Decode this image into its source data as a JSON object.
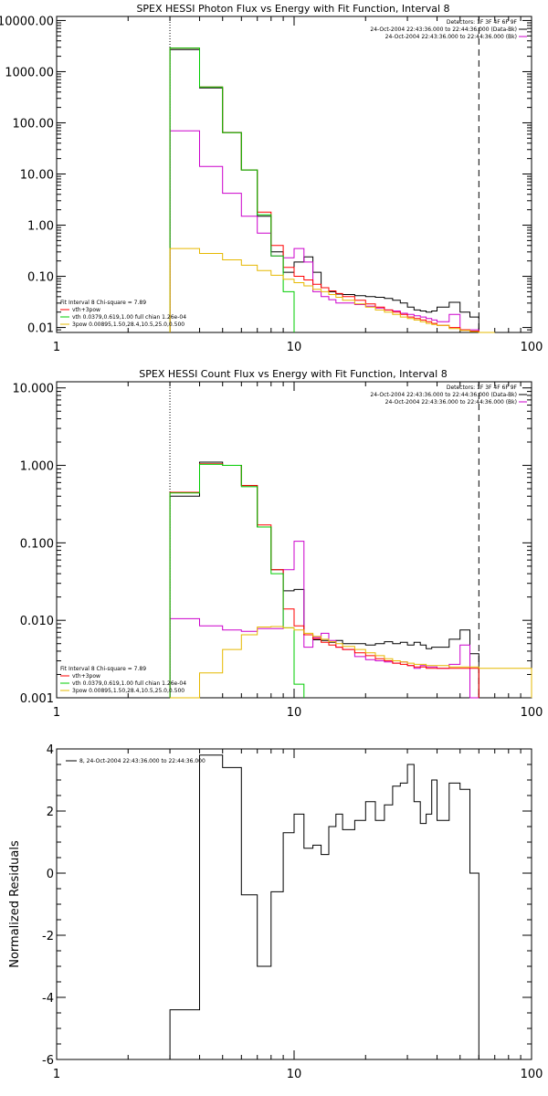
{
  "chart_data": [
    {
      "type": "line",
      "title": "SPEX HESSI Photon Flux vs Energy with Fit Function, Interval 8",
      "xlabel": "",
      "ylabel": "",
      "xscale": "log",
      "yscale": "log",
      "xlim": [
        1,
        100
      ],
      "ylim": [
        0.008,
        12000
      ],
      "x_ticks": [
        {
          "value": 1,
          "label": "1"
        },
        {
          "value": 10,
          "label": "10"
        },
        {
          "value": 100,
          "label": "100"
        }
      ],
      "y_ticks": [
        {
          "value": 0.01,
          "label": "0.01"
        },
        {
          "value": 0.1,
          "label": "0.10"
        },
        {
          "value": 1,
          "label": "1.00"
        },
        {
          "value": 10,
          "label": "10.00"
        },
        {
          "value": 100,
          "label": "100.00"
        },
        {
          "value": 1000,
          "label": "1000.00"
        },
        {
          "value": 10000,
          "label": "10000.00"
        }
      ],
      "vlines": [
        {
          "x": 3,
          "style": "dotted"
        },
        {
          "x": 60,
          "style": "dashed"
        }
      ],
      "legend_top_right": [
        {
          "text": "Detectors: 1F 3F 4F 6F 9F",
          "color": ""
        },
        {
          "text": "24-Oct-2004 22:43:36.000 to 22:44:36.000 (Data-Bk)",
          "color": "#000000"
        },
        {
          "text": "24-Oct-2004 22:43:36.000 to 22:44:36.000 (Bk)",
          "color": "#cc00cc"
        }
      ],
      "legend_bottom_left": [
        {
          "text": "Fit Interval 8   Chi-square = 7.89",
          "color": ""
        },
        {
          "text": "vth+3pow",
          "color": "#ff0000"
        },
        {
          "text": "vth 0.0379,0.619,1.00  full chian 1.26e-04",
          "color": "#00cc00"
        },
        {
          "text": "3pow 0.00895,1.50,28.4,10.5,25.0,0.500",
          "color": "#e6b800"
        }
      ],
      "series": [
        {
          "role": "data",
          "color": "#000000",
          "edges": [
            3,
            4,
            5,
            6,
            7,
            8,
            9,
            10,
            11,
            12,
            13,
            14,
            15,
            16,
            18,
            20,
            22,
            24,
            26,
            28,
            30,
            32,
            34,
            36,
            38,
            40,
            45,
            50,
            55,
            60
          ],
          "values": [
            2700,
            480,
            65,
            12,
            1.5,
            0.3,
            0.12,
            0.19,
            0.24,
            0.12,
            0.06,
            0.05,
            0.045,
            0.044,
            0.042,
            0.04,
            0.039,
            0.037,
            0.034,
            0.03,
            0.025,
            0.022,
            0.021,
            0.02,
            0.021,
            0.025,
            0.031,
            0.02,
            0.016
          ]
        },
        {
          "role": "background",
          "color": "#cc00cc",
          "edges": [
            3,
            4,
            5,
            6,
            7,
            8,
            9,
            10,
            11,
            12,
            13,
            14,
            15,
            16,
            18,
            20,
            22,
            24,
            26,
            28,
            30,
            32,
            34,
            36,
            38,
            40,
            45,
            50,
            55,
            60
          ],
          "values": [
            70,
            14,
            4.2,
            1.5,
            0.7,
            0.25,
            0.23,
            0.35,
            0.19,
            0.05,
            0.04,
            0.035,
            0.03,
            0.03,
            0.028,
            0.026,
            0.024,
            0.022,
            0.021,
            0.019,
            0.018,
            0.017,
            0.016,
            0.015,
            0.014,
            0.013,
            0.018,
            0.009,
            0.009
          ]
        },
        {
          "role": "fit",
          "color": "#ff0000",
          "edges": [
            3,
            4,
            5,
            6,
            7,
            8,
            9,
            10,
            11,
            12,
            13,
            14,
            15,
            16,
            18,
            20,
            22,
            24,
            26,
            28,
            30,
            32,
            34,
            36,
            38,
            40,
            45,
            50,
            55,
            60
          ],
          "values": [
            2900,
            500,
            64,
            12,
            1.8,
            0.4,
            0.15,
            0.1,
            0.085,
            0.07,
            0.06,
            0.052,
            0.046,
            0.04,
            0.034,
            0.029,
            0.025,
            0.022,
            0.02,
            0.018,
            0.016,
            0.015,
            0.014,
            0.013,
            0.012,
            0.011,
            0.01,
            0.009,
            0.0085
          ]
        },
        {
          "role": "thermal",
          "color": "#00cc00",
          "edges": [
            3,
            4,
            5,
            6,
            7,
            8,
            9,
            10
          ],
          "values": [
            2900,
            500,
            64,
            12,
            1.6,
            0.25,
            0.05
          ]
        },
        {
          "role": "power-law",
          "color": "#e6b800",
          "edges": [
            3,
            4,
            5,
            6,
            7,
            8,
            9,
            10,
            11,
            12,
            13,
            14,
            15,
            16,
            18,
            20,
            22,
            24,
            26,
            28,
            30,
            32,
            34,
            36,
            38,
            40,
            45,
            50,
            55,
            60,
            70
          ],
          "values": [
            0.35,
            0.28,
            0.21,
            0.165,
            0.13,
            0.105,
            0.088,
            0.075,
            0.065,
            0.056,
            0.05,
            0.044,
            0.039,
            0.034,
            0.029,
            0.025,
            0.022,
            0.02,
            0.018,
            0.016,
            0.015,
            0.014,
            0.013,
            0.012,
            0.0115,
            0.011,
            0.0095,
            0.0088,
            0.0083,
            0.008
          ]
        }
      ]
    },
    {
      "type": "line",
      "title": "SPEX HESSI Count Flux vs Energy with Fit Function, Interval 8",
      "xlabel": "",
      "ylabel": "",
      "xscale": "log",
      "yscale": "log",
      "xlim": [
        1,
        100
      ],
      "ylim": [
        0.001,
        12
      ],
      "x_ticks": [
        {
          "value": 1,
          "label": "1"
        },
        {
          "value": 10,
          "label": "10"
        },
        {
          "value": 100,
          "label": "100"
        }
      ],
      "y_ticks": [
        {
          "value": 0.001,
          "label": "0.001"
        },
        {
          "value": 0.01,
          "label": "0.010"
        },
        {
          "value": 0.1,
          "label": "0.100"
        },
        {
          "value": 1,
          "label": "1.000"
        },
        {
          "value": 10,
          "label": "10.000"
        }
      ],
      "vlines": [
        {
          "x": 3,
          "style": "dotted"
        },
        {
          "x": 60,
          "style": "dashed"
        }
      ],
      "legend_top_right": [
        {
          "text": "Detectors: 1F 3F 4F 6F 9F",
          "color": ""
        },
        {
          "text": "24-Oct-2004 22:43:36.000 to 22:44:36.000 (Data-Bk)",
          "color": "#000000"
        },
        {
          "text": "24-Oct-2004 22:43:36.000 to 22:44:36.000 (Bk)",
          "color": "#cc00cc"
        }
      ],
      "legend_bottom_left": [
        {
          "text": "Fit Interval 8   Chi-square = 7.89",
          "color": ""
        },
        {
          "text": "vth+3pow",
          "color": "#ff0000"
        },
        {
          "text": "vth 0.0379,0.619,1.00  full chian 1.26e-04",
          "color": "#00cc00"
        },
        {
          "text": "3pow 0.00895,1.50,28.4,10.5,25.0,0.500",
          "color": "#e6b800"
        }
      ],
      "series": [
        {
          "role": "data",
          "color": "#000000",
          "edges": [
            3,
            4,
            5,
            6,
            7,
            8,
            9,
            10,
            11,
            12,
            13,
            14,
            15,
            16,
            18,
            20,
            22,
            24,
            26,
            28,
            30,
            32,
            34,
            36,
            38,
            40,
            45,
            50,
            55,
            60
          ],
          "values": [
            0.4,
            1.1,
            1.0,
            0.55,
            0.16,
            0.045,
            0.024,
            0.025,
            0.0065,
            0.0056,
            0.0055,
            0.0052,
            0.0055,
            0.005,
            0.005,
            0.0048,
            0.005,
            0.0053,
            0.005,
            0.0052,
            0.0048,
            0.0052,
            0.0048,
            0.0043,
            0.0045,
            0.0045,
            0.0057,
            0.0075,
            0.0037
          ]
        },
        {
          "role": "background",
          "color": "#cc00cc",
          "edges": [
            3,
            4,
            5,
            6,
            7,
            8,
            9,
            10,
            11,
            12,
            13,
            14,
            15,
            16,
            18,
            20,
            22,
            24,
            26,
            28,
            30,
            32,
            34,
            36,
            38,
            40,
            45,
            50,
            55,
            60
          ],
          "values": [
            0.0105,
            0.0085,
            0.0075,
            0.0072,
            0.0078,
            0.0078,
            0.045,
            0.105,
            0.0045,
            0.006,
            0.0068,
            0.0055,
            0.0045,
            0.0042,
            0.0034,
            0.0031,
            0.003,
            0.0029,
            0.0028,
            0.0029,
            0.0026,
            0.0024,
            0.0026,
            0.0025,
            0.0025,
            0.0024,
            0.0027,
            0.0048,
            0.0009
          ]
        },
        {
          "role": "fit",
          "color": "#ff0000",
          "edges": [
            3,
            4,
            5,
            6,
            7,
            8,
            9,
            10,
            11,
            12,
            13,
            14,
            15,
            16,
            18,
            20,
            22,
            24,
            26,
            28,
            30,
            32,
            34,
            36,
            38,
            40,
            45,
            50,
            55,
            60
          ],
          "values": [
            0.45,
            1.05,
            1.0,
            0.55,
            0.17,
            0.045,
            0.014,
            0.0085,
            0.0065,
            0.0058,
            0.0052,
            0.0048,
            0.0045,
            0.0042,
            0.0038,
            0.0035,
            0.0032,
            0.003,
            0.0028,
            0.0027,
            0.0026,
            0.0025,
            0.0025,
            0.0024,
            0.0024,
            0.0024,
            0.0024,
            0.0024,
            0.0024
          ]
        },
        {
          "role": "thermal",
          "color": "#00cc00",
          "edges": [
            3,
            4,
            5,
            6,
            7,
            8,
            9,
            10,
            11
          ],
          "values": [
            0.44,
            1.03,
            1.0,
            0.53,
            0.16,
            0.04,
            0.008,
            0.0015
          ]
        },
        {
          "role": "power-law",
          "color": "#e6b800",
          "edges": [
            3,
            4,
            5,
            6,
            7,
            8,
            9,
            10,
            11,
            12,
            13,
            14,
            15,
            16,
            18,
            20,
            22,
            24,
            26,
            28,
            30,
            32,
            34,
            36,
            38,
            40,
            45,
            50,
            55,
            60,
            70,
            100
          ],
          "values": [
            0.0008,
            0.0021,
            0.0042,
            0.0065,
            0.0082,
            0.0083,
            0.008,
            0.0075,
            0.0068,
            0.0062,
            0.0057,
            0.0053,
            0.005,
            0.0046,
            0.0042,
            0.0038,
            0.0035,
            0.0032,
            0.003,
            0.0029,
            0.0028,
            0.0027,
            0.0027,
            0.0026,
            0.0026,
            0.0026,
            0.0025,
            0.0025,
            0.0025,
            0.0024,
            0.0024
          ]
        }
      ]
    },
    {
      "type": "line",
      "title": "",
      "xlabel": "",
      "ylabel": "Normalized Residuals",
      "xscale": "log",
      "yscale": "linear",
      "xlim": [
        1,
        100
      ],
      "ylim": [
        -6,
        4
      ],
      "x_ticks": [
        {
          "value": 1,
          "label": "1"
        },
        {
          "value": 10,
          "label": "10"
        },
        {
          "value": 100,
          "label": "100"
        }
      ],
      "y_ticks": [
        {
          "value": -6,
          "label": "-6"
        },
        {
          "value": -4,
          "label": "-4"
        },
        {
          "value": -2,
          "label": "-2"
        },
        {
          "value": 0,
          "label": "0"
        },
        {
          "value": 2,
          "label": "2"
        },
        {
          "value": 4,
          "label": "4"
        }
      ],
      "vlines": [],
      "legend_top_left": [
        {
          "text": "8, 24-Oct-2004 22:43:36.000 to 22:44:36.000",
          "color": "#000000"
        }
      ],
      "series": [
        {
          "role": "residuals",
          "color": "#000000",
          "edges": [
            3,
            4,
            5,
            6,
            7,
            8,
            9,
            10,
            11,
            12,
            13,
            14,
            15,
            16,
            18,
            20,
            22,
            24,
            26,
            28,
            30,
            32,
            34,
            36,
            38,
            40,
            45,
            50,
            55,
            60
          ],
          "values": [
            -4.4,
            3.8,
            3.4,
            -0.7,
            -3.0,
            -0.6,
            1.3,
            1.9,
            0.8,
            0.9,
            0.6,
            1.5,
            1.9,
            1.4,
            1.7,
            2.3,
            1.7,
            2.2,
            2.8,
            2.9,
            3.5,
            2.3,
            1.6,
            1.9,
            3.0,
            1.7,
            2.9,
            2.7,
            0.0
          ]
        }
      ]
    }
  ]
}
